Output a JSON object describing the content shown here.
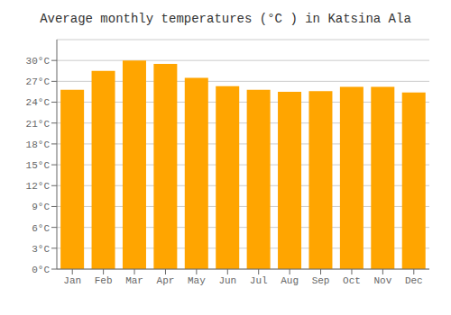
{
  "chart_data": {
    "type": "bar",
    "title": "Average monthly temperatures (°C ) in Katsina Ala",
    "categories": [
      "Jan",
      "Feb",
      "Mar",
      "Apr",
      "May",
      "Jun",
      "Jul",
      "Aug",
      "Sep",
      "Oct",
      "Nov",
      "Dec"
    ],
    "values": [
      25.8,
      28.5,
      30.0,
      29.5,
      27.5,
      26.3,
      25.8,
      25.5,
      25.6,
      26.2,
      26.2,
      25.4
    ],
    "color": "#FFA500",
    "ylim": [
      0,
      33
    ],
    "yticks": [
      {
        "value": 0,
        "label": "0°C"
      },
      {
        "value": 3,
        "label": "3°C"
      },
      {
        "value": 6,
        "label": "6°C"
      },
      {
        "value": 9,
        "label": "9°C"
      },
      {
        "value": 12,
        "label": "12°C"
      },
      {
        "value": 15,
        "label": "15°C"
      },
      {
        "value": 18,
        "label": "18°C"
      },
      {
        "value": 21,
        "label": "21°C"
      },
      {
        "value": 24,
        "label": "24°C"
      },
      {
        "value": 27,
        "label": "27°C"
      },
      {
        "value": 30,
        "label": "30°C"
      }
    ],
    "grid": true
  }
}
